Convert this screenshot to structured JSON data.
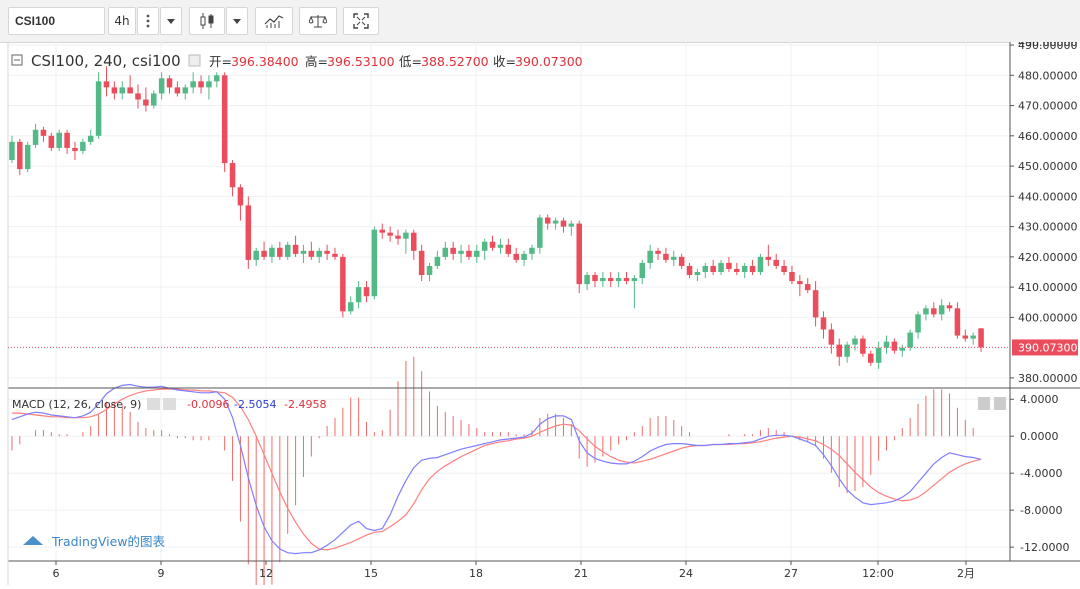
{
  "toolbar": {
    "symbol": "CSI100",
    "interval": "4h",
    "more_icon": "vertical-dots-icon",
    "dropdown_icon": "chevron-down-icon",
    "candle_icon": "candlestick-icon",
    "indicators_icon": "indicators-icon",
    "compare_icon": "scale-icon",
    "fullscreen_icon": "fullscreen-icon"
  },
  "legend": {
    "title": "CSI100, 240, csi100",
    "open_label": "开=",
    "open": "396.38400",
    "high_label": "高=",
    "high": "396.53100",
    "low_label": "低=",
    "low": "388.52700",
    "close_label": "收=",
    "close": "390.07300"
  },
  "macd_legend": {
    "title": "MACD (12, 26, close, 9)",
    "hist": "-0.0096",
    "macd": "-2.5054",
    "signal": "-2.4958"
  },
  "price_axis": {
    "ticks": [
      "490.00000",
      "480.00000",
      "470.00000",
      "460.00000",
      "450.00000",
      "440.00000",
      "430.00000",
      "420.00000",
      "410.00000",
      "400.00000",
      "380.00000"
    ],
    "last_price": "390.07300"
  },
  "macd_axis": {
    "ticks": [
      "4.0000",
      "0.0000",
      "-4.0000",
      "-8.0000",
      "-12.0000"
    ]
  },
  "time_axis": {
    "labels": [
      "6",
      "9",
      "12",
      "15",
      "18",
      "21",
      "24",
      "27",
      "12:00",
      "2月"
    ]
  },
  "watermark": "TradingView的图表",
  "colors": {
    "up": "#53b987",
    "down": "#eb4d5c",
    "macd_line": "#7f7fff",
    "signal_line": "#ff7f7f",
    "hist_up": "#f06a6a",
    "hist_down": "#f06a6a",
    "price_line": "#eb4d5c",
    "legend_value": "#e0303a",
    "grid": "#eef1f4"
  },
  "chart_data": {
    "type": "candlestick",
    "price_ylim": [
      377,
      491
    ],
    "macd_ylim": [
      -13.5,
      5
    ],
    "candles": [
      [
        452,
        460,
        451,
        458
      ],
      [
        458,
        459,
        447,
        449
      ],
      [
        449,
        458,
        448,
        457
      ],
      [
        457,
        464,
        456,
        462
      ],
      [
        462,
        463,
        458,
        460
      ],
      [
        460,
        461,
        455,
        456
      ],
      [
        456,
        462,
        455,
        461
      ],
      [
        461,
        462,
        454,
        456
      ],
      [
        456,
        458,
        452,
        455
      ],
      [
        455,
        459,
        454,
        458
      ],
      [
        458,
        462,
        457,
        460
      ],
      [
        460,
        481,
        459,
        478
      ],
      [
        478,
        483,
        473,
        476
      ],
      [
        476,
        478,
        472,
        474
      ],
      [
        474,
        478,
        472,
        476
      ],
      [
        476,
        480,
        474,
        474
      ],
      [
        474,
        477,
        469,
        472
      ],
      [
        472,
        476,
        468,
        470
      ],
      [
        470,
        475,
        469,
        474
      ],
      [
        474,
        481,
        472,
        479
      ],
      [
        479,
        480,
        474,
        476
      ],
      [
        476,
        478,
        473,
        474
      ],
      [
        474,
        477,
        472,
        476
      ],
      [
        476,
        481,
        474,
        478
      ],
      [
        478,
        480,
        474,
        476
      ],
      [
        476,
        480,
        472,
        478
      ],
      [
        478,
        481,
        476,
        480
      ],
      [
        480,
        481,
        448,
        451
      ],
      [
        451,
        452,
        440,
        443
      ],
      [
        443,
        444,
        432,
        437
      ],
      [
        437,
        440,
        416,
        419
      ],
      [
        419,
        423,
        417,
        422
      ],
      [
        422,
        425,
        419,
        420
      ],
      [
        420,
        424,
        418,
        423
      ],
      [
        423,
        425,
        419,
        420
      ],
      [
        420,
        425,
        419,
        424
      ],
      [
        424,
        427,
        420,
        421
      ],
      [
        421,
        424,
        418,
        422
      ],
      [
        422,
        425,
        419,
        420
      ],
      [
        420,
        423,
        418,
        422
      ],
      [
        422,
        424,
        419,
        421
      ],
      [
        421,
        423,
        419,
        420
      ],
      [
        420,
        421,
        400,
        402
      ],
      [
        402,
        407,
        401,
        405
      ],
      [
        405,
        412,
        403,
        410
      ],
      [
        410,
        412,
        405,
        407
      ],
      [
        407,
        430,
        406,
        429
      ],
      [
        429,
        431,
        426,
        428
      ],
      [
        428,
        430,
        425,
        427
      ],
      [
        427,
        429,
        424,
        426
      ],
      [
        426,
        429,
        421,
        428
      ],
      [
        428,
        429,
        419,
        422
      ],
      [
        422,
        424,
        412,
        414
      ],
      [
        414,
        418,
        412,
        417
      ],
      [
        417,
        422,
        416,
        420
      ],
      [
        420,
        425,
        419,
        423
      ],
      [
        423,
        425,
        419,
        421
      ],
      [
        421,
        424,
        418,
        422
      ],
      [
        422,
        424,
        419,
        420
      ],
      [
        420,
        424,
        418,
        422
      ],
      [
        422,
        426,
        419,
        425
      ],
      [
        425,
        427,
        422,
        423
      ],
      [
        423,
        426,
        421,
        424
      ],
      [
        424,
        426,
        420,
        421
      ],
      [
        421,
        423,
        418,
        419
      ],
      [
        419,
        422,
        417,
        421
      ],
      [
        421,
        424,
        419,
        423
      ],
      [
        423,
        434,
        421,
        433
      ],
      [
        433,
        434,
        429,
        431
      ],
      [
        431,
        433,
        429,
        432
      ],
      [
        432,
        433,
        428,
        430
      ],
      [
        430,
        432,
        427,
        431
      ],
      [
        431,
        432,
        408,
        411
      ],
      [
        411,
        415,
        409,
        414
      ],
      [
        414,
        415,
        410,
        412
      ],
      [
        412,
        415,
        410,
        413
      ],
      [
        413,
        415,
        410,
        412
      ],
      [
        412,
        415,
        410,
        413
      ],
      [
        413,
        415,
        411,
        412
      ],
      [
        412,
        414,
        403,
        413
      ],
      [
        413,
        419,
        411,
        418
      ],
      [
        418,
        424,
        416,
        422
      ],
      [
        422,
        423,
        419,
        421
      ],
      [
        421,
        423,
        418,
        419
      ],
      [
        419,
        422,
        417,
        420
      ],
      [
        420,
        421,
        416,
        417
      ],
      [
        417,
        418,
        413,
        414
      ],
      [
        414,
        416,
        412,
        415
      ],
      [
        415,
        418,
        413,
        417
      ],
      [
        417,
        419,
        414,
        415
      ],
      [
        415,
        419,
        414,
        418
      ],
      [
        418,
        420,
        415,
        416
      ],
      [
        416,
        418,
        414,
        415
      ],
      [
        415,
        418,
        413,
        417
      ],
      [
        417,
        419,
        414,
        415
      ],
      [
        415,
        421,
        414,
        420
      ],
      [
        420,
        424,
        417,
        419
      ],
      [
        419,
        421,
        416,
        417
      ],
      [
        417,
        419,
        414,
        415
      ],
      [
        415,
        417,
        411,
        412
      ],
      [
        412,
        414,
        407,
        411
      ],
      [
        411,
        413,
        408,
        409
      ],
      [
        409,
        412,
        397,
        400
      ],
      [
        400,
        402,
        393,
        396
      ],
      [
        396,
        398,
        388,
        391
      ],
      [
        391,
        393,
        384,
        387
      ],
      [
        387,
        392,
        385,
        391
      ],
      [
        391,
        394,
        389,
        393
      ],
      [
        393,
        394,
        387,
        388
      ],
      [
        388,
        389,
        384,
        385
      ],
      [
        385,
        392,
        383,
        390
      ],
      [
        390,
        394,
        388,
        392
      ],
      [
        392,
        393,
        388,
        389
      ],
      [
        389,
        391,
        387,
        390
      ],
      [
        390,
        396,
        389,
        395
      ],
      [
        395,
        402,
        393,
        401
      ],
      [
        401,
        404,
        399,
        403
      ],
      [
        403,
        405,
        400,
        401
      ],
      [
        401,
        406,
        399,
        404
      ],
      [
        404,
        405,
        402,
        403
      ],
      [
        403,
        405,
        393,
        394
      ],
      [
        394,
        396,
        392,
        393
      ],
      [
        393,
        395,
        391,
        394
      ],
      [
        396.384,
        396.531,
        388.527,
        390.073
      ]
    ],
    "macd": [
      1.8,
      2.1,
      2.4,
      2.6,
      2.5,
      2.3,
      2.2,
      2.1,
      2.0,
      2.2,
      2.6,
      3.5,
      4.6,
      5.2,
      5.5,
      5.6,
      5.4,
      5.3,
      5.3,
      5.4,
      5.2,
      5.0,
      4.9,
      4.8,
      4.7,
      4.7,
      4.8,
      4.0,
      2.0,
      -1.0,
      -4.5,
      -7.5,
      -9.8,
      -11.3,
      -12.2,
      -12.6,
      -12.7,
      -12.6,
      -12.6,
      -12.3,
      -11.8,
      -11.2,
      -10.4,
      -9.6,
      -9.2,
      -10.0,
      -10.2,
      -10.0,
      -8.5,
      -6.5,
      -4.8,
      -3.4,
      -2.6,
      -2.4,
      -2.3,
      -2.0,
      -1.7,
      -1.4,
      -1.2,
      -1.0,
      -0.8,
      -0.6,
      -0.4,
      -0.3,
      -0.2,
      -0.1,
      0.3,
      1.3,
      1.9,
      2.2,
      2.2,
      1.8,
      -0.5,
      -1.8,
      -2.4,
      -2.7,
      -2.9,
      -3.0,
      -3.0,
      -2.7,
      -2.2,
      -1.6,
      -1.2,
      -0.9,
      -0.8,
      -0.8,
      -0.9,
      -1.0,
      -1.0,
      -0.9,
      -0.9,
      -0.8,
      -0.8,
      -0.7,
      -0.6,
      -0.3,
      0.0,
      0.1,
      0.1,
      0.0,
      -0.3,
      -0.6,
      -1.0,
      -2.0,
      -3.2,
      -4.6,
      -5.8,
      -6.6,
      -7.2,
      -7.4,
      -7.3,
      -7.2,
      -7.0,
      -6.6,
      -6.0,
      -5.0,
      -4.0,
      -3.0,
      -2.3,
      -1.8,
      -2.0,
      -2.2,
      -2.3,
      -2.5054
    ],
    "signal": [
      2.5,
      2.5,
      2.4,
      2.3,
      2.2,
      2.1,
      2.1,
      2.0,
      2.0,
      2.0,
      2.1,
      2.4,
      2.9,
      3.5,
      4.0,
      4.4,
      4.7,
      4.9,
      5.0,
      5.1,
      5.1,
      5.1,
      5.0,
      5.0,
      4.9,
      4.9,
      4.8,
      4.7,
      4.2,
      3.2,
      1.8,
      0.0,
      -2.0,
      -4.0,
      -6.0,
      -7.8,
      -9.3,
      -10.6,
      -11.6,
      -12.2,
      -12.3,
      -12.1,
      -11.8,
      -11.5,
      -11.1,
      -10.7,
      -10.4,
      -10.3,
      -9.8,
      -9.2,
      -8.5,
      -7.3,
      -5.8,
      -4.6,
      -3.8,
      -3.2,
      -2.7,
      -2.2,
      -1.8,
      -1.4,
      -1.0,
      -0.8,
      -0.6,
      -0.5,
      -0.3,
      -0.2,
      0.0,
      0.4,
      0.8,
      1.1,
      1.3,
      1.2,
      0.6,
      -0.3,
      -1.1,
      -1.7,
      -2.2,
      -2.6,
      -2.8,
      -2.9,
      -2.7,
      -2.5,
      -2.2,
      -1.9,
      -1.6,
      -1.3,
      -1.1,
      -1.0,
      -1.0,
      -0.9,
      -0.9,
      -0.9,
      -0.8,
      -0.8,
      -0.7,
      -0.6,
      -0.4,
      -0.2,
      -0.1,
      0.0,
      -0.1,
      -0.3,
      -0.5,
      -0.9,
      -1.4,
      -2.1,
      -3.0,
      -3.9,
      -4.7,
      -5.5,
      -6.1,
      -6.5,
      -6.8,
      -7.0,
      -6.9,
      -6.6,
      -6.0,
      -5.3,
      -4.6,
      -3.9,
      -3.4,
      -3.0,
      -2.7,
      -2.4958
    ]
  }
}
